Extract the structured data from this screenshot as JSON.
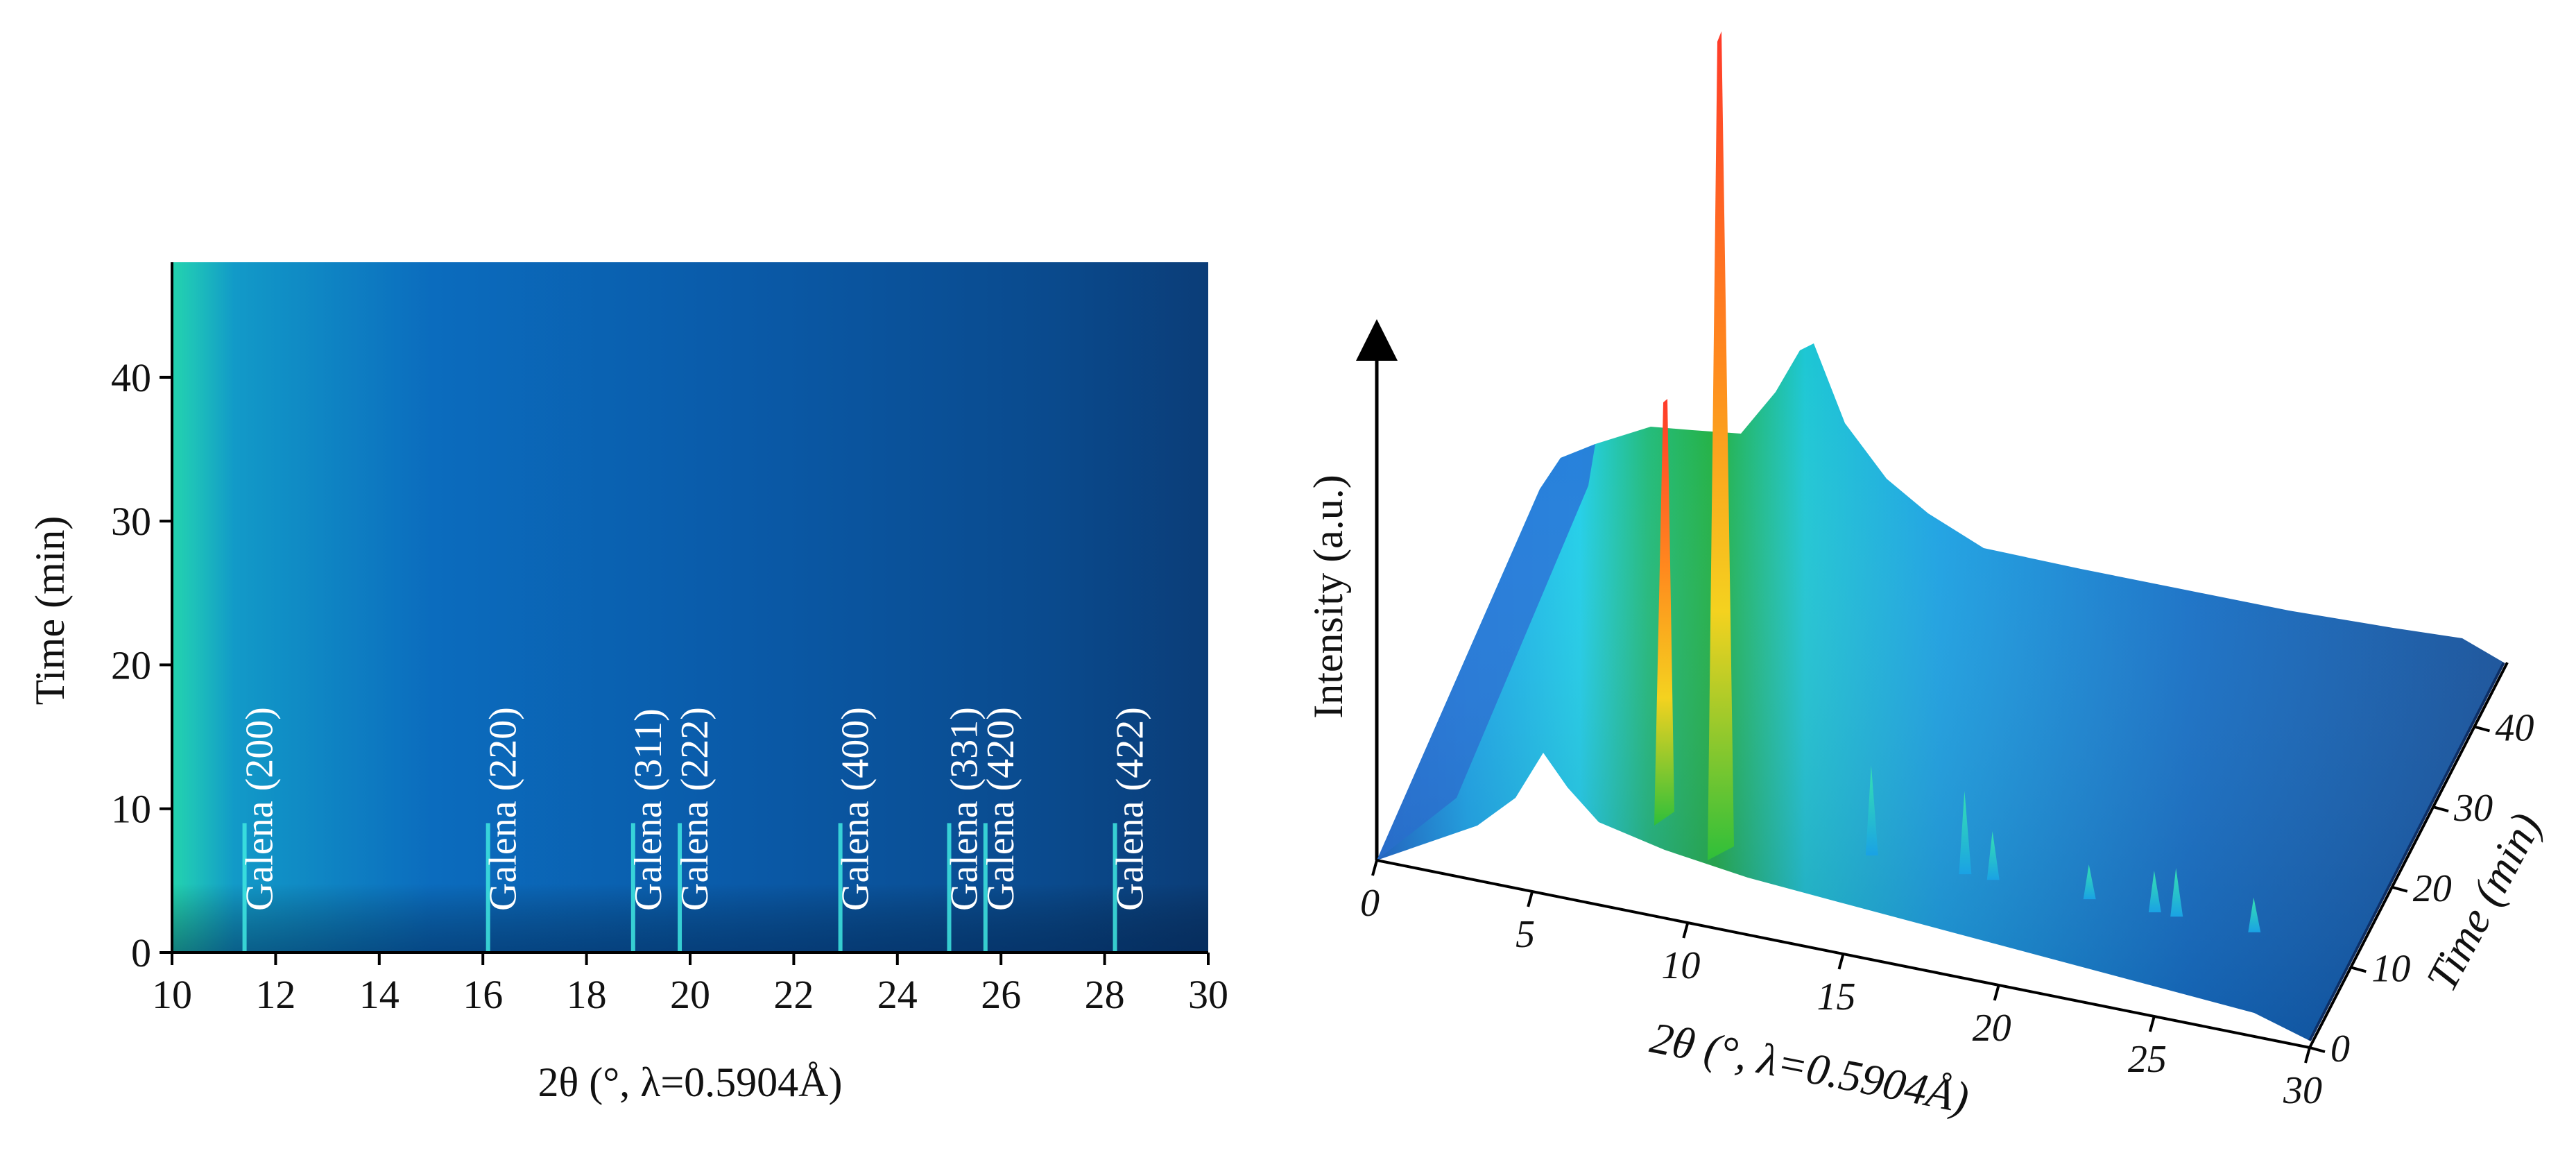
{
  "chart_data": [
    {
      "type": "heatmap",
      "xlabel": "2θ (°, λ=0.5904Å)",
      "ylabel": "Time (min)",
      "xlim": [
        10,
        30
      ],
      "ylim": [
        0,
        48
      ],
      "x_ticks": [
        "10",
        "12",
        "14",
        "16",
        "18",
        "20",
        "22",
        "24",
        "26",
        "28",
        "30"
      ],
      "y_ticks": [
        "0",
        "10",
        "20",
        "30",
        "40"
      ],
      "colors": {
        "low": "#0a2f63",
        "mid": "#0b6fc0",
        "high": "#20d6b0",
        "peak": "#3fe8e0"
      },
      "grid": false,
      "peaks": [
        {
          "x": 11.4,
          "label": "Galena (200)"
        },
        {
          "x": 16.1,
          "label": "Galena (220)"
        },
        {
          "x": 18.9,
          "label": "Galena (311)"
        },
        {
          "x": 19.8,
          "label": "Galena (222)"
        },
        {
          "x": 22.9,
          "label": "Galena (400)"
        },
        {
          "x": 25.0,
          "label": "Galena (331)"
        },
        {
          "x": 25.7,
          "label": "Galena (420)"
        },
        {
          "x": 28.2,
          "label": "Galena (422)"
        }
      ]
    },
    {
      "type": "area",
      "view": "3d-surface",
      "xlabel": "2θ (°, λ=0.5904Å)",
      "ylabel": "Time (min)",
      "zlabel": "Intensity (a.u.)",
      "xlim": [
        0,
        30
      ],
      "ylim": [
        0,
        48
      ],
      "x_ticks": [
        "0",
        "5",
        "10",
        "15",
        "20",
        "25",
        "30"
      ],
      "y_ticks": [
        "0",
        "10",
        "20",
        "30",
        "40"
      ],
      "colors": {
        "low": "#0f3f8c",
        "mid": "#14c0ef",
        "hump": "#12b838",
        "peak_top": "#ff3a2a"
      },
      "tall_peaks_2theta": [
        9.0,
        10.9
      ],
      "minor_peaks_2theta": [
        15.9,
        18.9,
        19.8,
        22.9,
        25.0,
        25.7,
        28.2
      ]
    }
  ]
}
